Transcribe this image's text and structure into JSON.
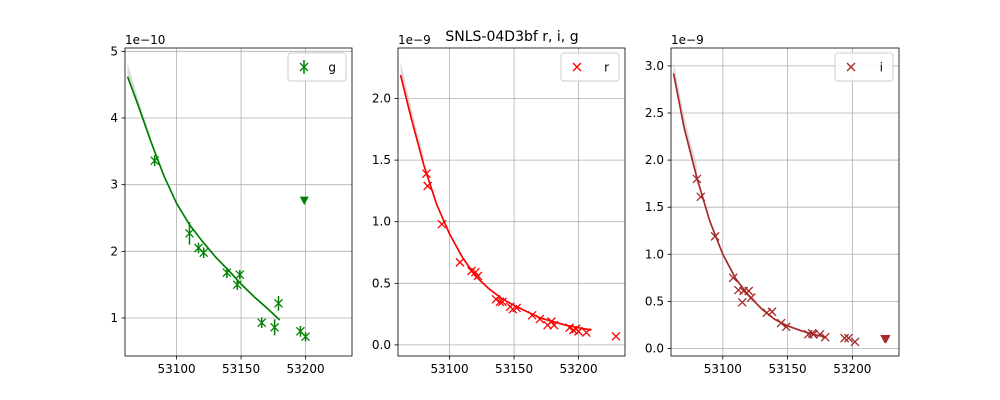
{
  "figure": {
    "title": "SNLS-04D3bf  r, i, g"
  },
  "chart_data": [
    {
      "type": "scatter",
      "band": "g",
      "color": "#008000",
      "offset_label": "1e−10",
      "xlim": [
        53060,
        53236
      ],
      "ylim": [
        0.43,
        5.05
      ],
      "xticks": [
        53100,
        53150,
        53200
      ],
      "xtick_labels": [
        "53100",
        "53150",
        "53200"
      ],
      "yticks": [
        1,
        2,
        3,
        4,
        5
      ],
      "ytick_labels": [
        "1",
        "2",
        "3",
        "4",
        "5"
      ],
      "grid": true,
      "legend": {
        "label": "g",
        "placement": "top-right"
      },
      "points": [
        {
          "x": 53083,
          "y": 3.36,
          "err": 0.08
        },
        {
          "x": 53110,
          "y": 2.27,
          "err": 0.17
        },
        {
          "x": 53117,
          "y": 2.05,
          "err": 0.08
        },
        {
          "x": 53121,
          "y": 1.98,
          "err": 0.08
        },
        {
          "x": 53139,
          "y": 1.68,
          "err": 0.08
        },
        {
          "x": 53147,
          "y": 1.5,
          "err": 0.08
        },
        {
          "x": 53149,
          "y": 1.65,
          "err": 0.07
        },
        {
          "x": 53166,
          "y": 0.93,
          "err": 0.08
        },
        {
          "x": 53176,
          "y": 0.86,
          "err": 0.12
        },
        {
          "x": 53179,
          "y": 1.22,
          "err": 0.11
        },
        {
          "x": 53196,
          "y": 0.8,
          "err": 0.08
        },
        {
          "x": 53200,
          "y": 0.72,
          "err": 0.07
        }
      ],
      "upper_limits": [
        {
          "x": 53199,
          "y": 2.76
        }
      ],
      "model": {
        "x": [
          53062,
          53070,
          53080,
          53090,
          53100,
          53110,
          53120,
          53130,
          53140,
          53150,
          53160,
          53170,
          53180
        ],
        "y": [
          4.62,
          4.2,
          3.65,
          3.14,
          2.72,
          2.4,
          2.15,
          1.92,
          1.72,
          1.51,
          1.32,
          1.15,
          0.97
        ]
      },
      "band_upper": {
        "x": [
          53062,
          53066,
          53070,
          53075,
          53080
        ],
        "y": [
          4.82,
          4.57,
          4.3,
          4.0,
          3.72
        ]
      }
    },
    {
      "type": "scatter",
      "band": "r",
      "color": "#ff0000",
      "offset_label": "1e−9",
      "xlim": [
        53060,
        53236
      ],
      "ylim": [
        -0.09,
        2.41
      ],
      "xticks": [
        53100,
        53150,
        53200
      ],
      "xtick_labels": [
        "53100",
        "53150",
        "53200"
      ],
      "yticks": [
        0.0,
        0.5,
        1.0,
        1.5,
        2.0
      ],
      "ytick_labels": [
        "0.0",
        "0.5",
        "1.0",
        "1.5",
        "2.0"
      ],
      "grid": true,
      "legend": {
        "label": "r",
        "placement": "top-right"
      },
      "points": [
        {
          "x": 53082,
          "y": 1.39
        },
        {
          "x": 53083,
          "y": 1.29
        },
        {
          "x": 53094,
          "y": 0.98
        },
        {
          "x": 53108,
          "y": 0.67
        },
        {
          "x": 53117,
          "y": 0.6
        },
        {
          "x": 53120,
          "y": 0.59
        },
        {
          "x": 53122,
          "y": 0.56
        },
        {
          "x": 53136,
          "y": 0.37
        },
        {
          "x": 53139,
          "y": 0.35
        },
        {
          "x": 53141,
          "y": 0.35
        },
        {
          "x": 53147,
          "y": 0.31
        },
        {
          "x": 53149,
          "y": 0.29
        },
        {
          "x": 53152,
          "y": 0.3
        },
        {
          "x": 53164,
          "y": 0.24
        },
        {
          "x": 53170,
          "y": 0.21
        },
        {
          "x": 53176,
          "y": 0.16
        },
        {
          "x": 53179,
          "y": 0.19
        },
        {
          "x": 53181,
          "y": 0.16
        },
        {
          "x": 53193,
          "y": 0.14
        },
        {
          "x": 53196,
          "y": 0.12
        },
        {
          "x": 53198,
          "y": 0.13
        },
        {
          "x": 53200,
          "y": 0.11
        },
        {
          "x": 53206,
          "y": 0.1
        },
        {
          "x": 53229,
          "y": 0.07
        }
      ],
      "upper_limits": [],
      "model": {
        "x": [
          53062,
          53070,
          53080,
          53090,
          53100,
          53110,
          53120,
          53130,
          53140,
          53150,
          53160,
          53170,
          53180,
          53190,
          53200,
          53210
        ],
        "y": [
          2.19,
          1.85,
          1.46,
          1.14,
          0.9,
          0.71,
          0.56,
          0.46,
          0.38,
          0.32,
          0.27,
          0.22,
          0.19,
          0.16,
          0.14,
          0.12
        ]
      },
      "band_upper": {
        "x": [
          53062,
          53066,
          53070,
          53075,
          53080
        ],
        "y": [
          2.3,
          2.12,
          1.94,
          1.73,
          1.53
        ]
      }
    },
    {
      "type": "scatter",
      "band": "i",
      "color": "#a52a2a",
      "offset_label": "1e−9",
      "xlim": [
        53060,
        53236
      ],
      "ylim": [
        -0.08,
        3.19
      ],
      "xticks": [
        53100,
        53150,
        53200
      ],
      "xtick_labels": [
        "53100",
        "53150",
        "53200"
      ],
      "yticks": [
        0.0,
        0.5,
        1.0,
        1.5,
        2.0,
        2.5,
        3.0
      ],
      "ytick_labels": [
        "0.0",
        "0.5",
        "1.0",
        "1.5",
        "2.0",
        "2.5",
        "3.0"
      ],
      "grid": true,
      "legend": {
        "label": "i",
        "placement": "top-right"
      },
      "points": [
        {
          "x": 53080,
          "y": 1.8
        },
        {
          "x": 53083,
          "y": 1.61
        },
        {
          "x": 53094,
          "y": 1.19
        },
        {
          "x": 53108,
          "y": 0.75
        },
        {
          "x": 53112,
          "y": 0.62
        },
        {
          "x": 53115,
          "y": 0.49
        },
        {
          "x": 53116,
          "y": 0.61
        },
        {
          "x": 53120,
          "y": 0.61
        },
        {
          "x": 53122,
          "y": 0.54
        },
        {
          "x": 53134,
          "y": 0.38
        },
        {
          "x": 53138,
          "y": 0.39
        },
        {
          "x": 53145,
          "y": 0.27
        },
        {
          "x": 53149,
          "y": 0.23
        },
        {
          "x": 53166,
          "y": 0.15
        },
        {
          "x": 53169,
          "y": 0.16
        },
        {
          "x": 53170,
          "y": 0.15
        },
        {
          "x": 53175,
          "y": 0.15
        },
        {
          "x": 53179,
          "y": 0.12
        },
        {
          "x": 53194,
          "y": 0.11
        },
        {
          "x": 53197,
          "y": 0.11
        },
        {
          "x": 53202,
          "y": 0.07
        }
      ],
      "upper_limits": [
        {
          "x": 53225,
          "y": 0.1
        },
        {
          "x": 53226,
          "y": 0.1
        }
      ],
      "model": {
        "x": [
          53062,
          53070,
          53080,
          53090,
          53100,
          53110,
          53120,
          53130,
          53140,
          53150,
          53160,
          53170,
          53180
        ],
        "y": [
          2.92,
          2.35,
          1.81,
          1.35,
          1.0,
          0.74,
          0.56,
          0.42,
          0.31,
          0.24,
          0.19,
          0.15,
          0.12
        ]
      },
      "band_upper": {
        "x": [
          53062,
          53066,
          53070,
          53075,
          53080
        ],
        "y": [
          3.05,
          2.75,
          2.48,
          2.2,
          1.95
        ]
      }
    }
  ]
}
